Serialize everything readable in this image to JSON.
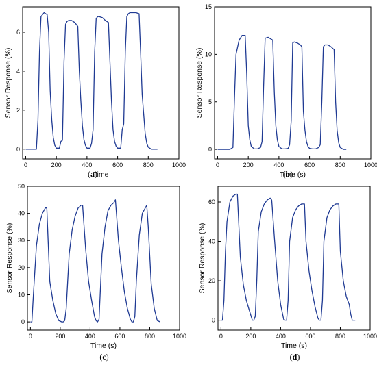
{
  "line_color": "#1f3a93",
  "chart_data": [
    {
      "type": "line",
      "panel": "(a)",
      "xlabel": "Time",
      "ylabel": "Sensor Response (%)",
      "xlim": [
        -20,
        1000
      ],
      "ylim": [
        -0.5,
        7.3
      ],
      "xticks": [
        0,
        200,
        400,
        600,
        800,
        1000
      ],
      "yticks": [
        0,
        2,
        4,
        6
      ],
      "grid": false,
      "series": [
        {
          "x": [
            0,
            20,
            40,
            60,
            70,
            80,
            90,
            100,
            120,
            140,
            150,
            160,
            170,
            180,
            190,
            200,
            220,
            230,
            240,
            250,
            260,
            270,
            280,
            300,
            320,
            340,
            350,
            360,
            370,
            380,
            390,
            400,
            420,
            430,
            440,
            450,
            460,
            470,
            480,
            500,
            520,
            540,
            550,
            560,
            570,
            580,
            590,
            600,
            620,
            630,
            640,
            650,
            660,
            670,
            680,
            700,
            720,
            740,
            750,
            760,
            770,
            780,
            790,
            800,
            820,
            840,
            860
          ],
          "y": [
            0,
            0,
            0,
            0,
            0,
            1.5,
            5.0,
            6.8,
            7.0,
            6.9,
            6.0,
            3.0,
            1.5,
            0.6,
            0.2,
            0.05,
            0.05,
            0.4,
            0.45,
            4.5,
            6.4,
            6.55,
            6.6,
            6.6,
            6.5,
            6.3,
            4.0,
            2.5,
            1.2,
            0.5,
            0.2,
            0.05,
            0.05,
            0.3,
            1.0,
            5.0,
            6.7,
            6.8,
            6.8,
            6.75,
            6.6,
            6.5,
            4.5,
            2.5,
            1.0,
            0.4,
            0.15,
            0.05,
            0.05,
            1.0,
            1.3,
            5.0,
            6.8,
            6.95,
            7.0,
            7.0,
            7.0,
            6.95,
            5.0,
            2.8,
            1.8,
            0.8,
            0.3,
            0.1,
            0,
            0,
            0
          ]
        }
      ]
    },
    {
      "type": "line",
      "panel": "(b)",
      "xlabel": "Time (s)",
      "ylabel": "Sensor Response (%)",
      "xlim": [
        -20,
        1000
      ],
      "ylim": [
        -1,
        15
      ],
      "xticks": [
        0,
        200,
        400,
        600,
        800,
        1000
      ],
      "yticks": [
        0,
        5,
        10,
        15
      ],
      "grid": false,
      "series": [
        {
          "x": [
            0,
            40,
            80,
            100,
            110,
            120,
            140,
            160,
            180,
            190,
            200,
            210,
            220,
            240,
            260,
            280,
            290,
            300,
            310,
            330,
            350,
            360,
            370,
            380,
            390,
            400,
            420,
            440,
            460,
            470,
            480,
            490,
            500,
            520,
            540,
            550,
            560,
            570,
            580,
            590,
            600,
            620,
            640,
            660,
            670,
            680,
            690,
            700,
            720,
            740,
            760,
            770,
            780,
            790,
            800,
            820,
            840
          ],
          "y": [
            0,
            0,
            0,
            0.2,
            5.5,
            10.0,
            11.5,
            12.0,
            12.0,
            8.0,
            2.5,
            1.0,
            0.3,
            0.05,
            0.05,
            0.2,
            0.8,
            6.5,
            11.7,
            11.8,
            11.6,
            11.5,
            6.0,
            2.5,
            1.0,
            0.3,
            0.05,
            0.05,
            0.1,
            0.5,
            3.0,
            11.2,
            11.3,
            11.2,
            11.0,
            10.8,
            4.0,
            2.0,
            0.8,
            0.3,
            0.1,
            0.05,
            0.05,
            0.2,
            0.5,
            5.0,
            10.8,
            11.0,
            11.0,
            10.8,
            10.5,
            5.0,
            2.0,
            0.7,
            0.2,
            0,
            0
          ]
        }
      ]
    },
    {
      "type": "line",
      "panel": "(c)",
      "xlabel": "Time (s)",
      "ylabel": "Sensor Response (%)",
      "xlim": [
        -20,
        1000
      ],
      "ylim": [
        -3,
        50
      ],
      "xticks": [
        0,
        200,
        400,
        600,
        800,
        1000
      ],
      "yticks": [
        0,
        10,
        20,
        30,
        40,
        50
      ],
      "grid": false,
      "series": [
        {
          "x": [
            0,
            10,
            20,
            40,
            60,
            80,
            100,
            110,
            130,
            150,
            170,
            190,
            210,
            220,
            230,
            240,
            260,
            280,
            300,
            320,
            340,
            350,
            370,
            390,
            410,
            430,
            440,
            450,
            460,
            480,
            500,
            520,
            540,
            560,
            570,
            590,
            610,
            630,
            650,
            670,
            680,
            690,
            700,
            710,
            730,
            750,
            770,
            780,
            790,
            810,
            830,
            850,
            870
          ],
          "y": [
            0,
            0,
            10.0,
            28.0,
            36.0,
            40.0,
            42.0,
            42.0,
            15.0,
            8.0,
            3.0,
            0.5,
            0,
            0,
            0.5,
            5.0,
            25.0,
            34.0,
            39.0,
            42.0,
            43.0,
            43.0,
            27.0,
            15.0,
            8.0,
            2.0,
            0.5,
            0,
            1.0,
            25.0,
            35.0,
            41.0,
            43.0,
            44.0,
            45.0,
            30.0,
            20.0,
            11.0,
            5.0,
            1.0,
            0,
            0,
            2.0,
            15.0,
            32.0,
            40.0,
            42.0,
            43.0,
            35.0,
            14.0,
            5.0,
            0.5,
            0
          ]
        }
      ]
    },
    {
      "type": "line",
      "panel": "(d)",
      "xlabel": "Time (s)",
      "ylabel": "Sensor Response (%)",
      "xlim": [
        -20,
        1000
      ],
      "ylim": [
        -5,
        68
      ],
      "xticks": [
        0,
        200,
        400,
        600,
        800,
        1000
      ],
      "yticks": [
        0,
        20,
        40,
        60
      ],
      "grid": false,
      "series": [
        {
          "x": [
            0,
            10,
            20,
            30,
            40,
            60,
            80,
            100,
            110,
            130,
            150,
            170,
            190,
            210,
            220,
            230,
            240,
            250,
            270,
            290,
            310,
            330,
            340,
            360,
            380,
            400,
            420,
            430,
            440,
            450,
            460,
            480,
            500,
            520,
            540,
            560,
            570,
            590,
            610,
            630,
            650,
            660,
            670,
            680,
            690,
            710,
            730,
            750,
            770,
            790,
            800,
            820,
            840,
            860,
            870,
            880,
            890,
            900
          ],
          "y": [
            0,
            0,
            10.0,
            35.0,
            50.0,
            60.0,
            63.0,
            64.0,
            64.0,
            32.0,
            18.0,
            10.0,
            5.0,
            0,
            0,
            2.0,
            20.0,
            45.0,
            55.0,
            59.0,
            61.0,
            62.0,
            61.0,
            40.0,
            20.0,
            8.0,
            0.5,
            0,
            0,
            10.0,
            40.0,
            52.0,
            56.0,
            58.0,
            59.0,
            59.0,
            40.0,
            25.0,
            15.0,
            7.0,
            1.0,
            0,
            0,
            10.0,
            40.0,
            52.0,
            56.0,
            58.0,
            59.0,
            59.0,
            35.0,
            20.0,
            12.0,
            8.0,
            3.0,
            0,
            0,
            0
          ]
        }
      ]
    }
  ]
}
